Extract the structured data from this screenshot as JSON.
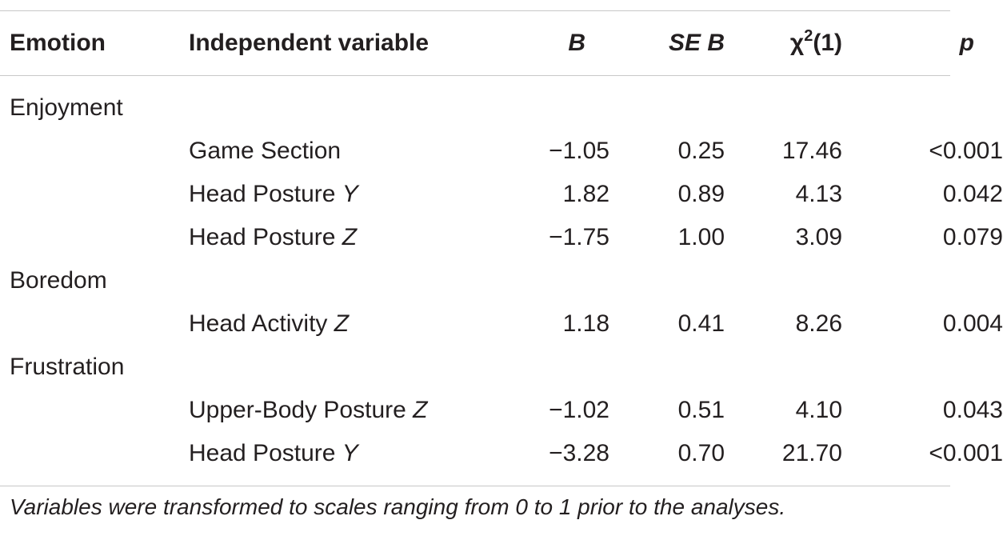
{
  "header": {
    "emotion": "Emotion",
    "independent_variable": "Independent variable",
    "b": "B",
    "se_b": "SE B",
    "chi_symbol": "χ",
    "chi_sup": "2",
    "chi_df": "(1)",
    "p": "p"
  },
  "groups": [
    {
      "emotion": "Enjoyment",
      "rows": [
        {
          "var_prefix": "Game Section",
          "var_axis": "",
          "b": "−1.05",
          "se_b": "0.25",
          "chi": "17.46",
          "p": "<0.001"
        },
        {
          "var_prefix": "Head Posture ",
          "var_axis": "Y",
          "b": "1.82",
          "se_b": "0.89",
          "chi": "4.13",
          "p": "0.042"
        },
        {
          "var_prefix": "Head Posture ",
          "var_axis": "Z",
          "b": "−1.75",
          "se_b": "1.00",
          "chi": "3.09",
          "p": "0.079"
        }
      ]
    },
    {
      "emotion": "Boredom",
      "rows": [
        {
          "var_prefix": "Head Activity ",
          "var_axis": "Z",
          "b": "1.18",
          "se_b": "0.41",
          "chi": "8.26",
          "p": "0.004"
        }
      ]
    },
    {
      "emotion": "Frustration",
      "rows": [
        {
          "var_prefix": "Upper-Body Posture ",
          "var_axis": "Z",
          "b": "−1.02",
          "se_b": "0.51",
          "chi": "4.10",
          "p": "0.043"
        },
        {
          "var_prefix": "Head Posture ",
          "var_axis": "Y",
          "b": "−3.28",
          "se_b": "0.70",
          "chi": "21.70",
          "p": "<0.001"
        }
      ]
    }
  ],
  "footnote": "Variables were transformed to scales ranging from 0 to 1 prior to the analyses."
}
